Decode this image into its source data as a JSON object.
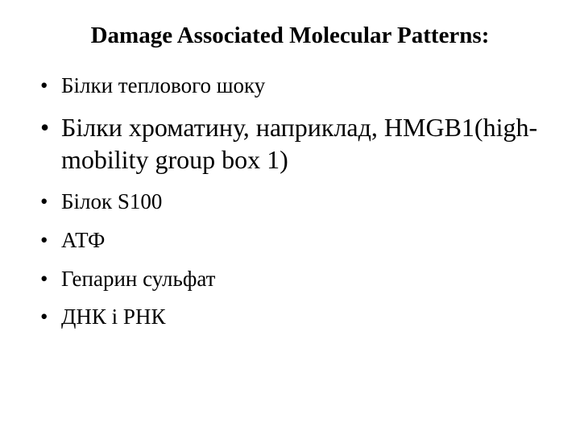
{
  "slide": {
    "title": "Damage Associated Molecular Patterns:",
    "bullets": [
      {
        "text": "Білки теплового шоку",
        "size": "small"
      },
      {
        "text": "Білки хроматину, наприклад, HMGB1(high-mobility group box 1)",
        "size": "big"
      },
      {
        "text": "Білок S100",
        "size": "small"
      },
      {
        "text": " АТФ",
        "size": "small"
      },
      {
        "text": "Гепарин сульфат",
        "size": "small"
      },
      {
        "text": "ДНК і РНК",
        "size": "small"
      }
    ],
    "colors": {
      "background": "#ffffff",
      "text": "#000000"
    },
    "typography": {
      "family": "Times New Roman",
      "title_fontsize_pt": 22,
      "title_weight": "bold",
      "small_bullet_fontsize_pt": 20,
      "big_bullet_fontsize_pt": 24
    }
  }
}
